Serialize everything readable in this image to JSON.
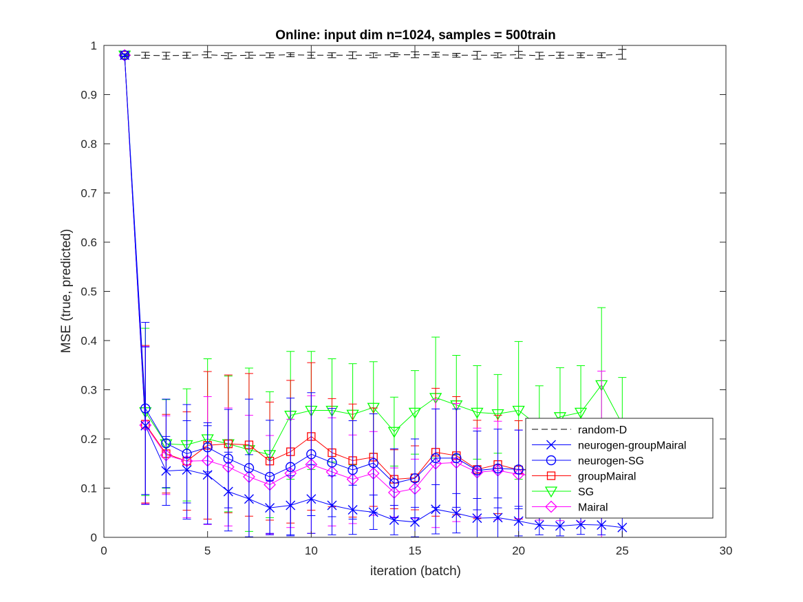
{
  "chart_data": {
    "type": "line",
    "title": "Online:  input dim n=1024, samples = 500train",
    "xlabel": "iteration (batch)",
    "ylabel": "MSE (true, predicted)",
    "xlim": [
      0,
      30
    ],
    "ylim": [
      0,
      1
    ],
    "xticks": [
      "0",
      "5",
      "10",
      "15",
      "20",
      "25",
      "30"
    ],
    "yticks": [
      "0",
      "0.1",
      "0.2",
      "0.3",
      "0.4",
      "0.5",
      "0.6",
      "0.7",
      "0.8",
      "0.9",
      "1"
    ],
    "grid": false,
    "legend_position": "lower-right",
    "x": [
      1,
      2,
      3,
      4,
      5,
      6,
      7,
      8,
      9,
      10,
      11,
      12,
      13,
      14,
      15,
      16,
      17,
      18,
      19,
      20,
      21,
      22,
      23,
      24,
      25
    ],
    "series": [
      {
        "name": "random-D",
        "color": "#000000",
        "dash": true,
        "marker": "none",
        "values": [
          0.98,
          0.98,
          0.979,
          0.98,
          0.981,
          0.979,
          0.98,
          0.98,
          0.981,
          0.98,
          0.98,
          0.98,
          0.98,
          0.981,
          0.981,
          0.981,
          0.98,
          0.98,
          0.98,
          0.981,
          0.979,
          0.98,
          0.98,
          0.98,
          0.982
        ],
        "errors": [
          0.003,
          0.006,
          0.007,
          0.006,
          0.006,
          0.006,
          0.006,
          0.005,
          0.004,
          0.006,
          0.005,
          0.007,
          0.005,
          0.004,
          0.006,
          0.005,
          0.004,
          0.008,
          0.005,
          0.007,
          0.007,
          0.006,
          0.005,
          0.005,
          0.01
        ]
      },
      {
        "name": "neurogen-groupMairal",
        "color": "#0000ff",
        "dash": false,
        "marker": "x",
        "values": [
          0.98,
          0.227,
          0.135,
          0.137,
          0.127,
          0.093,
          0.078,
          0.06,
          0.065,
          0.078,
          0.065,
          0.056,
          0.051,
          0.035,
          0.031,
          0.057,
          0.049,
          0.039,
          0.04,
          0.033,
          0.025,
          0.023,
          0.026,
          0.025,
          0.02
        ],
        "errors": [
          0.002,
          0.16,
          0.07,
          0.1,
          0.1,
          0.08,
          0.09,
          0.055,
          0.06,
          0.07,
          0.06,
          0.05,
          0.035,
          0.03,
          0.03,
          0.05,
          0.04,
          0.04,
          0.04,
          0.03,
          0.02,
          0.02,
          0.02,
          0.02,
          0.02
        ]
      },
      {
        "name": "neurogen-SG",
        "color": "#0000ff",
        "dash": false,
        "marker": "circle",
        "values": [
          0.98,
          0.262,
          0.191,
          0.17,
          0.183,
          0.16,
          0.141,
          0.123,
          0.143,
          0.169,
          0.152,
          0.137,
          0.151,
          0.11,
          0.12,
          0.161,
          0.161,
          0.136,
          0.14,
          0.138,
          0.135,
          0.13,
          0.132,
          0.13,
          0.13
        ],
        "errors": [
          0.002,
          0.175,
          0.09,
          0.1,
          0.05,
          0.1,
          0.14,
          0.115,
          0.14,
          0.125,
          0.11,
          0.1,
          0.1,
          0.07,
          0.08,
          0.1,
          0.1,
          0.08,
          0.08,
          0.08,
          0.07,
          0.07,
          0.07,
          0.07,
          0.07
        ]
      },
      {
        "name": "groupMairal",
        "color": "#ff0000",
        "dash": false,
        "marker": "square",
        "values": [
          0.98,
          0.23,
          0.17,
          0.155,
          0.187,
          0.19,
          0.188,
          0.155,
          0.174,
          0.205,
          0.172,
          0.156,
          0.163,
          0.118,
          0.121,
          0.173,
          0.166,
          0.138,
          0.148,
          0.137,
          0.14,
          0.142,
          0.14,
          0.14,
          0.14
        ],
        "errors": [
          0.002,
          0.16,
          0.08,
          0.1,
          0.15,
          0.14,
          0.145,
          0.12,
          0.145,
          0.15,
          0.11,
          0.115,
          0.1,
          0.06,
          0.065,
          0.13,
          0.12,
          0.1,
          0.1,
          0.1,
          0.1,
          0.1,
          0.1,
          0.1,
          0.1
        ]
      },
      {
        "name": "SG",
        "color": "#00ff00",
        "dash": false,
        "marker": "triangle-down",
        "values": [
          0.98,
          0.255,
          0.19,
          0.188,
          0.2,
          0.19,
          0.178,
          0.168,
          0.248,
          0.258,
          0.258,
          0.25,
          0.264,
          0.215,
          0.254,
          0.284,
          0.269,
          0.254,
          0.251,
          0.258,
          0.225,
          0.245,
          0.254,
          0.31,
          0.23
        ],
        "errors": [
          0.002,
          0.17,
          0.09,
          0.114,
          0.163,
          0.138,
          0.166,
          0.128,
          0.13,
          0.12,
          0.105,
          0.103,
          0.093,
          0.07,
          0.085,
          0.123,
          0.101,
          0.095,
          0.08,
          0.14,
          0.083,
          0.1,
          0.095,
          0.157,
          0.095
        ]
      },
      {
        "name": "Mairal",
        "color": "#ff00ff",
        "dash": false,
        "marker": "diamond",
        "values": [
          0.98,
          0.228,
          0.167,
          0.155,
          0.156,
          0.143,
          0.123,
          0.107,
          0.13,
          0.148,
          0.133,
          0.118,
          0.13,
          0.091,
          0.099,
          0.15,
          0.152,
          0.132,
          0.136,
          0.128,
          0.125,
          0.124,
          0.122,
          0.128,
          0.12
        ],
        "errors": [
          0.002,
          0.16,
          0.08,
          0.115,
          0.13,
          0.12,
          0.125,
          0.1,
          0.11,
          0.14,
          0.11,
          0.09,
          0.085,
          0.05,
          0.06,
          0.13,
          0.12,
          0.09,
          0.1,
          0.09,
          0.09,
          0.09,
          0.09,
          0.21,
          0.08
        ]
      }
    ]
  }
}
